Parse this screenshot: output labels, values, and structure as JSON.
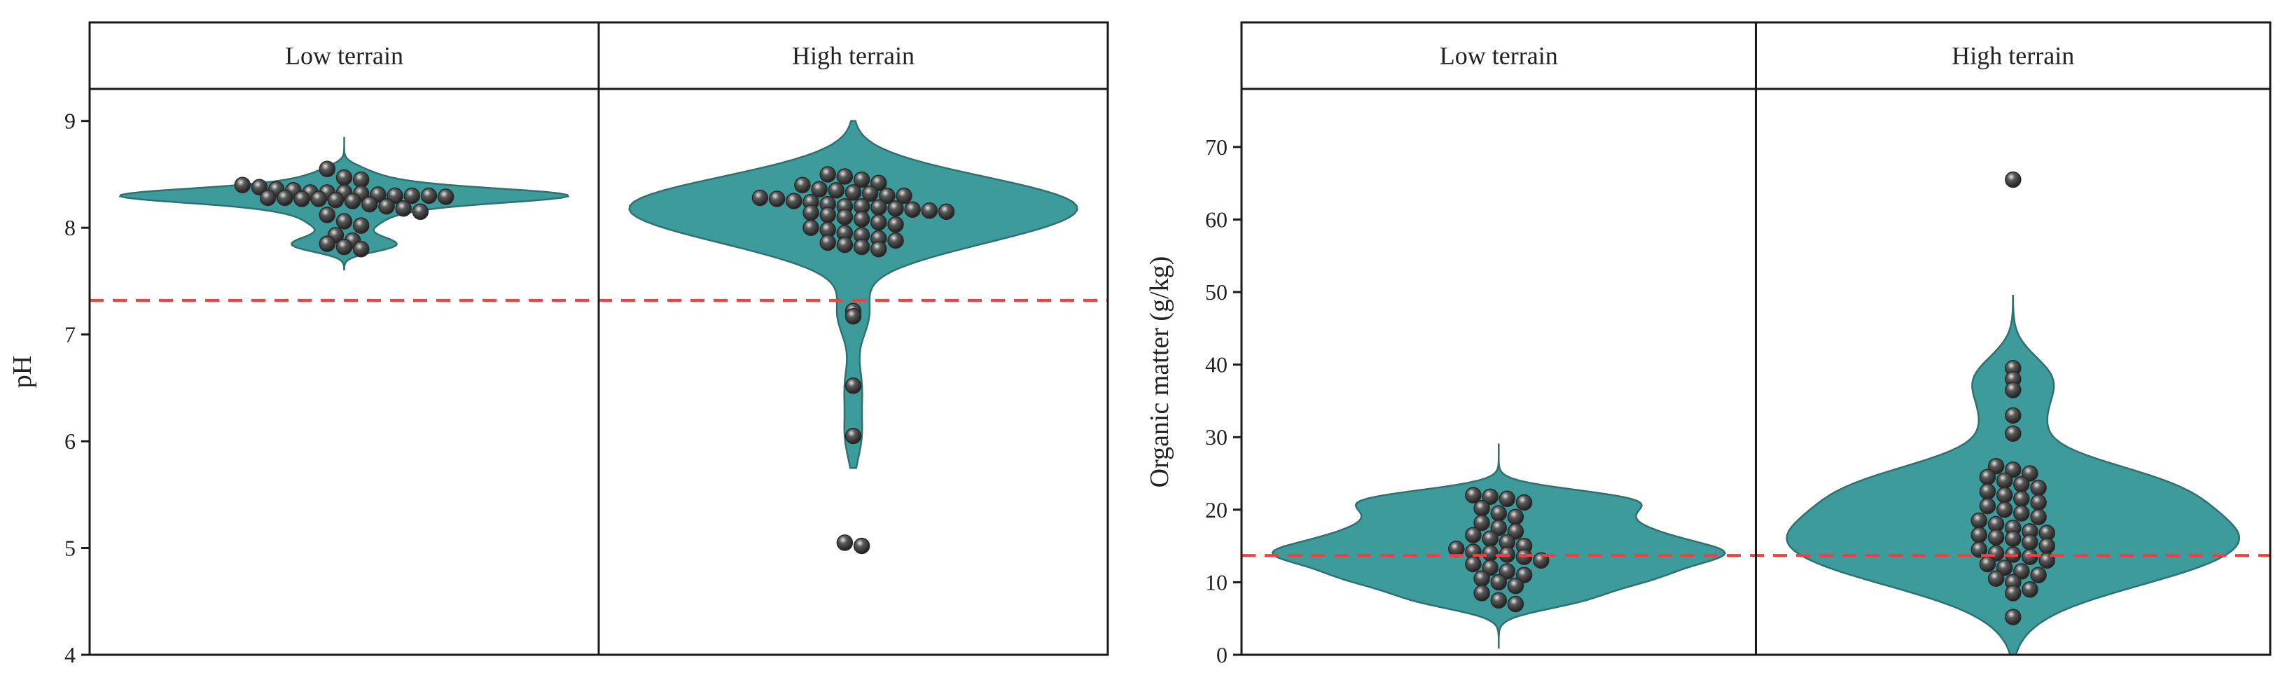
{
  "colors": {
    "violin_fill": "#3d9b9b",
    "violin_stroke": "#2f7070",
    "reference_line": "#ff3b3b",
    "dot": "#5a5a5a"
  },
  "chart_data": [
    {
      "type": "violin",
      "ylabel": "pH",
      "ylim": [
        4,
        9.3
      ],
      "yticks": [
        "4",
        "5",
        "6",
        "7",
        "8",
        "9"
      ],
      "reference_line": {
        "y": 7.32,
        "style": "dashed",
        "color": "#ff3b3b"
      },
      "panels": [
        {
          "label": "Low terrain",
          "violin_range": [
            7.6,
            8.85
          ],
          "points": [
            8.55,
            8.47,
            8.45,
            8.4,
            8.38,
            8.36,
            8.35,
            8.33,
            8.33,
            8.33,
            8.32,
            8.31,
            8.3,
            8.3,
            8.3,
            8.29,
            8.28,
            8.28,
            8.27,
            8.27,
            8.26,
            8.25,
            8.22,
            8.2,
            8.18,
            8.15,
            8.12,
            8.06,
            8.02,
            7.93,
            7.88,
            7.85,
            7.82,
            7.8
          ]
        },
        {
          "label": "High terrain",
          "violin_range": [
            5.75,
            9.0
          ],
          "points": [
            8.5,
            8.48,
            8.45,
            8.42,
            8.4,
            8.36,
            8.35,
            8.33,
            8.32,
            8.3,
            8.3,
            8.28,
            8.27,
            8.25,
            8.24,
            8.22,
            8.2,
            8.2,
            8.19,
            8.18,
            8.17,
            8.16,
            8.15,
            8.14,
            8.12,
            8.1,
            8.08,
            8.05,
            8.03,
            8.0,
            7.98,
            7.95,
            7.93,
            7.9,
            7.88,
            7.86,
            7.84,
            7.82,
            7.8,
            7.22,
            7.17,
            6.52,
            6.05,
            5.05,
            5.02
          ]
        }
      ]
    },
    {
      "type": "violin",
      "ylabel": "Organic matter (g/kg)",
      "ylim": [
        0,
        78
      ],
      "yticks": [
        "0",
        "10",
        "20",
        "30",
        "40",
        "50",
        "60",
        "70"
      ],
      "reference_line": {
        "y": 13.7,
        "style": "dashed",
        "color": "#ff3b3b"
      },
      "panels": [
        {
          "label": "Low terrain",
          "violin_range": [
            1,
            29
          ],
          "points": [
            22,
            21.8,
            21.5,
            21,
            20.2,
            19.5,
            19,
            18.2,
            17.5,
            17,
            16.5,
            16,
            15.5,
            15,
            14.6,
            14.2,
            14,
            13.8,
            13.5,
            13,
            12.5,
            12,
            11.5,
            11,
            10.5,
            10,
            9.5,
            8.5,
            7.5,
            7
          ]
        },
        {
          "label": "High terrain",
          "violin_range": [
            0,
            49.5
          ],
          "points": [
            65.5,
            39.5,
            38,
            36.5,
            33,
            30.5,
            26,
            25.5,
            25,
            24.5,
            24,
            23.5,
            23,
            22.5,
            22,
            21.5,
            21,
            20.5,
            20,
            19.5,
            19,
            18.5,
            18,
            17.5,
            17,
            16.8,
            16.5,
            16.2,
            16,
            15.5,
            15,
            14.5,
            14,
            13.8,
            13.5,
            13,
            12.5,
            12,
            11.5,
            11,
            10.5,
            10,
            9,
            8.5,
            5.2
          ]
        }
      ]
    }
  ]
}
